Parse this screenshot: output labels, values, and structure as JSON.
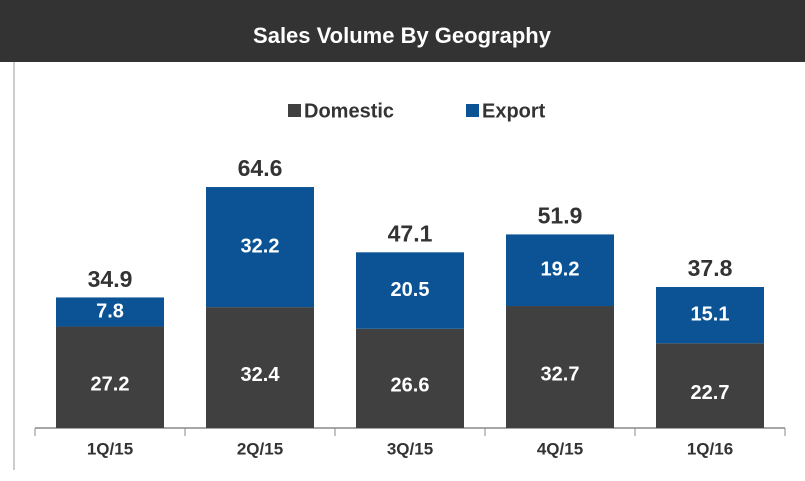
{
  "chart_data": {
    "type": "stacked_bar",
    "title": "Sales Volume By Geography",
    "categories": [
      "1Q/15",
      "2Q/15",
      "3Q/15",
      "4Q/15",
      "1Q/16"
    ],
    "series": [
      {
        "name": "Domestic",
        "color": "#404040",
        "values": [
          27.2,
          32.4,
          26.6,
          32.7,
          22.7
        ]
      },
      {
        "name": "Export",
        "color": "#0b5394",
        "values": [
          7.8,
          32.2,
          20.5,
          19.2,
          15.1
        ]
      }
    ],
    "totals": [
      34.9,
      64.6,
      47.1,
      51.9,
      37.8
    ],
    "legend": "top"
  }
}
